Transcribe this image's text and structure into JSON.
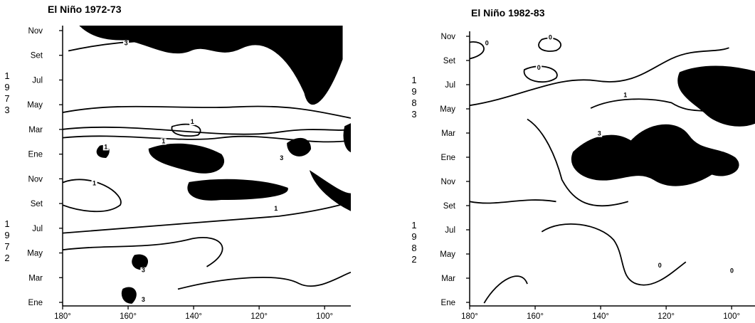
{
  "chart_data": [
    {
      "type": "heatmap",
      "title": "El Niño 1972-73",
      "x_ticks": [
        "180°",
        "160°",
        "140°",
        "120°",
        "100°"
      ],
      "xlim": [
        180,
        92
      ],
      "y_ticks": [
        "Ene",
        "Mar",
        "May",
        "Jul",
        "Set",
        "Nov",
        "Ene",
        "Mar",
        "May",
        "Jul",
        "Set",
        "Nov"
      ],
      "year_labels": [
        {
          "chars": [
            "1",
            "9",
            "7",
            "2"
          ]
        },
        {
          "chars": [
            "1",
            "9",
            "7",
            "3"
          ]
        }
      ],
      "contour_labels": [
        "3",
        "1",
        "1",
        "1",
        "1",
        "1",
        "3",
        "3",
        "3"
      ],
      "contour_levels": [
        1,
        3
      ],
      "shaded_level": "above 3"
    },
    {
      "type": "heatmap",
      "title": "El Niño 1982-83",
      "x_ticks": [
        "180°",
        "160°",
        "140°",
        "120°",
        "100°"
      ],
      "xlim": [
        180,
        92
      ],
      "y_ticks": [
        "Ene",
        "Mar",
        "May",
        "Jul",
        "Set",
        "Nov",
        "Ene",
        "Mar",
        "May",
        "Jul",
        "Set",
        "Nov"
      ],
      "year_labels": [
        {
          "chars": [
            "1",
            "9",
            "8",
            "2"
          ]
        },
        {
          "chars": [
            "1",
            "9",
            "8",
            "3"
          ]
        }
      ],
      "contour_labels": [
        "0",
        "0",
        "0",
        "1",
        "3",
        "0",
        "0"
      ],
      "contour_levels": [
        0,
        1,
        3
      ],
      "shaded_level": "above 3"
    }
  ]
}
